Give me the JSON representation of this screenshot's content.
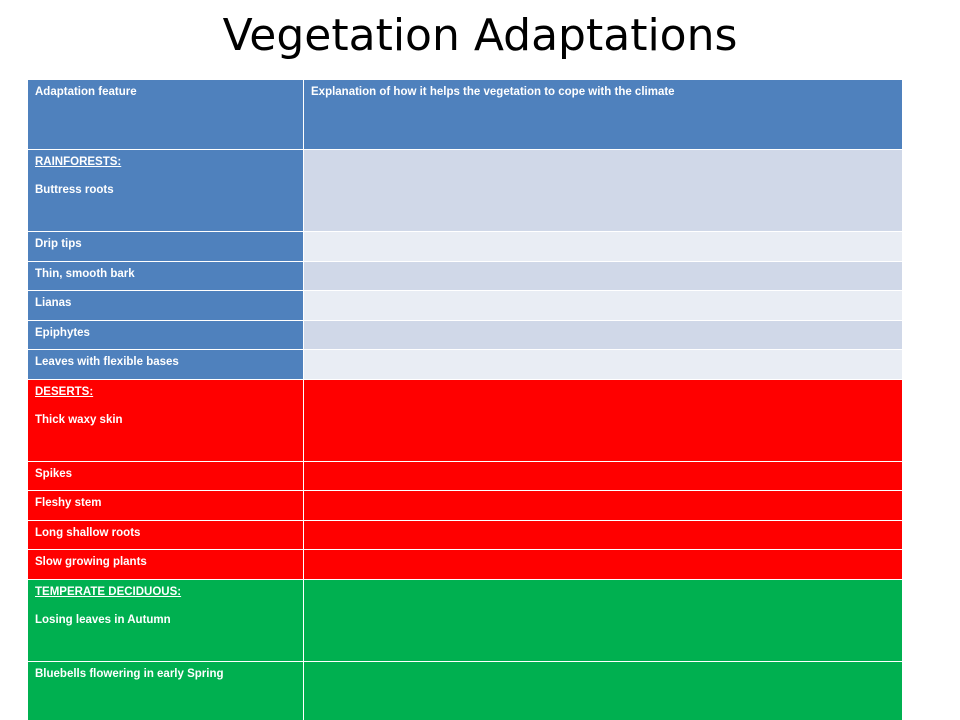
{
  "title": "Vegetation Adaptations",
  "table": {
    "header": {
      "col1": "Adaptation feature",
      "col2": "Explanation of how it helps the vegetation to cope with the climate"
    },
    "rainforests": {
      "heading": "RAINFORESTS:",
      "first": "Buttress roots",
      "rows": [
        "Drip tips",
        "Thin, smooth bark",
        "Lianas",
        "Epiphytes",
        "Leaves with flexible bases"
      ]
    },
    "deserts": {
      "heading": "DESERTS:",
      "first": "Thick waxy skin",
      "rows": [
        "Spikes",
        "Fleshy stem",
        "Long shallow roots",
        "Slow growing plants"
      ]
    },
    "temperate": {
      "heading": "TEMPERATE DECIDUOUS:",
      "first": "Losing leaves in Autumn",
      "rows": [
        "Bluebells flowering in early  Spring"
      ]
    }
  },
  "colors": {
    "rainforest_feature": "#4f81bd",
    "rainforest_explanation_a": "#d0d8e8",
    "rainforest_explanation_b": "#e9edf4",
    "desert": "#ff0000",
    "temperate": "#00b050"
  }
}
